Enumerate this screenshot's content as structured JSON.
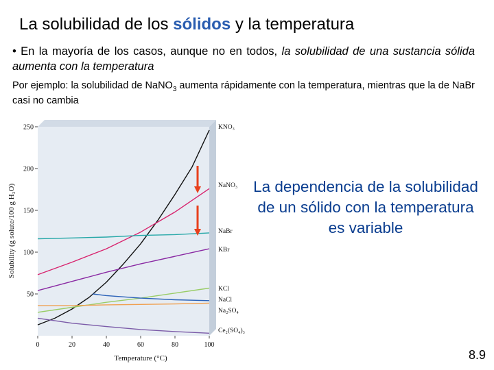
{
  "slide": {
    "title_pre": "La solubilidad de los ",
    "title_highlight": "sólidos",
    "title_post": " y la temperatura",
    "bullet_pre": "• En la mayoría de los casos, aunque no en todos, ",
    "bullet_italic": "la solubilidad de una sustancia sólida aumenta con la temperatura",
    "example_pre": "Por ejemplo: la solubilidad de NaNO",
    "example_sub": "3",
    "example_post": " aumenta rápidamente con la temperatura, mientras que la de NaBr casi no cambia",
    "callout": "La dependencia de la solubilidad de un sólido con la temperatura es variable",
    "slide_number": "8.9"
  },
  "colors": {
    "title_highlight": "#2a5db0",
    "callout": "#0a3d8f",
    "arrow": "#e8401c",
    "plot_background": "#e6ecf3"
  },
  "chart_data": {
    "type": "line",
    "xlabel": "Temperature (°C)",
    "ylabel": "Solubility (g solute/100 g H₂O)",
    "xlim": [
      0,
      100
    ],
    "ylim": [
      0,
      250
    ],
    "x_ticks": [
      "0",
      "20",
      "40",
      "60",
      "80",
      "100"
    ],
    "y_ticks": [
      "50",
      "100",
      "150",
      "200",
      "250"
    ],
    "grid": false,
    "series": [
      {
        "name": "KNO₃",
        "color": "#111111",
        "x": [
          0,
          10,
          20,
          30,
          40,
          50,
          60,
          70,
          80,
          90,
          100
        ],
        "y": [
          13,
          21,
          32,
          46,
          64,
          86,
          110,
          138,
          169,
          202,
          246
        ]
      },
      {
        "name": "NaNO₃",
        "color": "#d8246e",
        "x": [
          0,
          20,
          40,
          60,
          80,
          100
        ],
        "y": [
          73,
          88,
          104,
          124,
          148,
          176
        ]
      },
      {
        "name": "NaBr",
        "color": "#27a8a8",
        "x": [
          0,
          20,
          40,
          60,
          80,
          100
        ],
        "y": [
          116,
          117,
          118,
          120,
          121,
          123
        ]
      },
      {
        "name": "KBr",
        "color": "#8a2aa3",
        "x": [
          0,
          20,
          40,
          60,
          80,
          100
        ],
        "y": [
          54,
          65,
          76,
          86,
          95,
          104
        ]
      },
      {
        "name": "KCl",
        "color": "#99cc66",
        "x": [
          0,
          20,
          40,
          60,
          80,
          100
        ],
        "y": [
          28,
          34,
          40,
          45,
          51,
          57
        ]
      },
      {
        "name": "NaCl",
        "color": "#f0a050",
        "x": [
          0,
          20,
          40,
          60,
          80,
          100
        ],
        "y": [
          36,
          36,
          37,
          37.5,
          38,
          39
        ]
      },
      {
        "name": "Na₂SO₄",
        "color": "#2b62b8",
        "x": [
          32,
          40,
          60,
          80,
          100
        ],
        "y": [
          50,
          48,
          45,
          43,
          42
        ]
      },
      {
        "name": "Ce₂(SO₄)₃",
        "color": "#7b5ba8",
        "x": [
          0,
          20,
          40,
          60,
          80,
          100
        ],
        "y": [
          21,
          15,
          11,
          7.5,
          5,
          3
        ]
      }
    ]
  }
}
